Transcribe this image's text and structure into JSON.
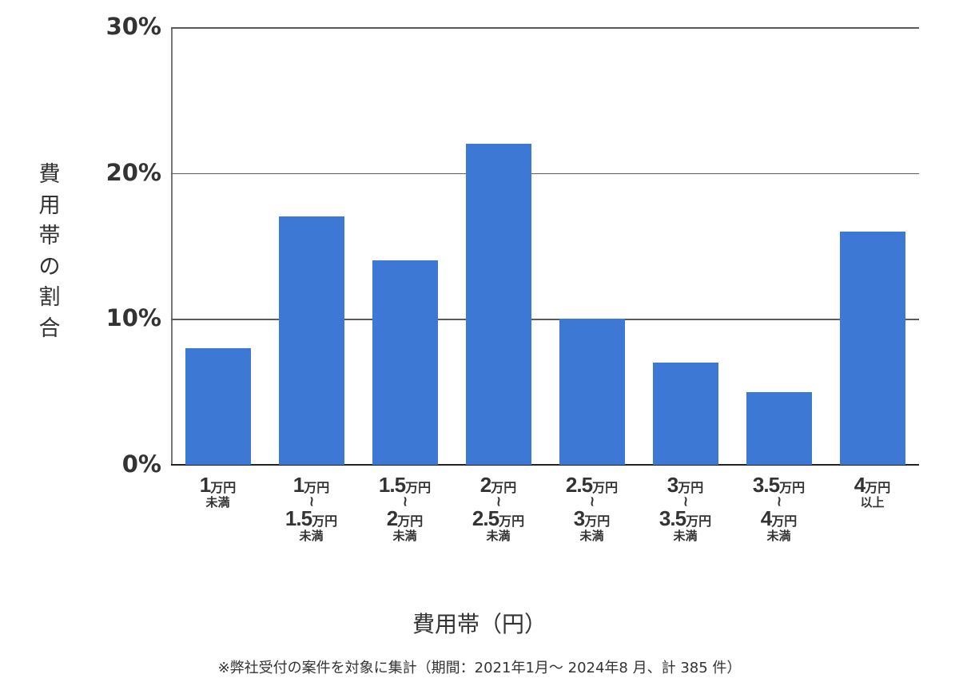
{
  "chart_data": {
    "type": "bar",
    "title": "",
    "xlabel": "費用帯（円）",
    "ylabel": "費用帯の割合",
    "ylim": [
      0,
      30
    ],
    "yticks": [
      "0%",
      "10%",
      "20%",
      "30%"
    ],
    "grid": true,
    "legend": null,
    "bar_color": "#3d79d4",
    "categories": [
      "1万円未満",
      "1万円～1.5万円未満",
      "1.5万円～2万円未満",
      "2万円～2.5万円未満",
      "2.5万円～3万円未満",
      "3万円～3.5万円未満",
      "3.5万円～4万円未満",
      "4万円以上"
    ],
    "values": [
      8,
      17,
      14,
      22,
      10,
      7,
      5,
      16
    ],
    "unit": "%",
    "footnote": "※弊社受付の案件を対象に集計（期間：2021年1月～ 2024年8 月、計 385 件）"
  },
  "axis": {
    "y_title_vertical": "費\n用\n帯\nの\n割\n合",
    "y_ticks": [
      {
        "label": "30%",
        "value": 30
      },
      {
        "label": "20%",
        "value": 20
      },
      {
        "label": "10%",
        "value": 10
      },
      {
        "label": "0%",
        "value": 0
      }
    ],
    "x_title": "費用帯（円）"
  },
  "x_labels": [
    {
      "from_num": "1",
      "from_unit": "万円",
      "tilde": "",
      "to_num": "",
      "to_unit": "",
      "suffix": "未満"
    },
    {
      "from_num": "1",
      "from_unit": "万円",
      "tilde": "~",
      "to_num": "1.5",
      "to_unit": "万円",
      "suffix": "未満"
    },
    {
      "from_num": "1.5",
      "from_unit": "万円",
      "tilde": "~",
      "to_num": "2",
      "to_unit": "万円",
      "suffix": "未満"
    },
    {
      "from_num": "2",
      "from_unit": "万円",
      "tilde": "~",
      "to_num": "2.5",
      "to_unit": "万円",
      "suffix": "未満"
    },
    {
      "from_num": "2.5",
      "from_unit": "万円",
      "tilde": "~",
      "to_num": "3",
      "to_unit": "万円",
      "suffix": "未満"
    },
    {
      "from_num": "3",
      "from_unit": "万円",
      "tilde": "~",
      "to_num": "3.5",
      "to_unit": "万円",
      "suffix": "未満"
    },
    {
      "from_num": "3.5",
      "from_unit": "万円",
      "tilde": "~",
      "to_num": "4",
      "to_unit": "万円",
      "suffix": "未満"
    },
    {
      "from_num": "4",
      "from_unit": "万円",
      "tilde": "",
      "to_num": "",
      "to_unit": "",
      "suffix": "以上"
    }
  ],
  "footnote": "※弊社受付の案件を対象に集計（期間：2021年1月～ 2024年8 月、計 385 件）"
}
